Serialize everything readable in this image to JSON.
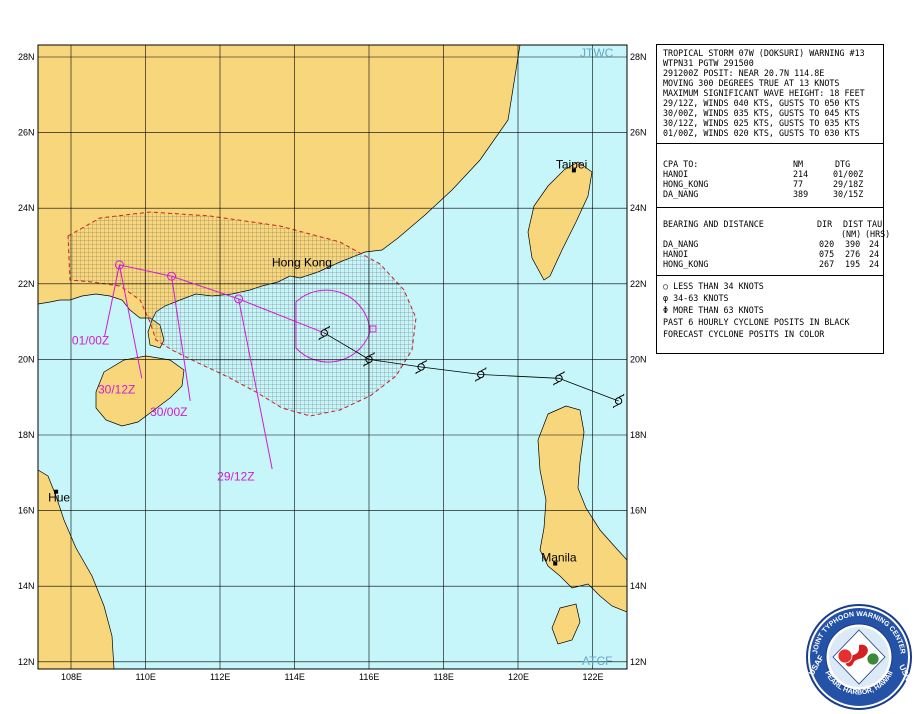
{
  "map": {
    "corner_top": "JTWC",
    "corner_bottom": "ATCF",
    "lat_labels": [
      "28N",
      "26N",
      "24N",
      "22N",
      "20N",
      "18N",
      "16N",
      "14N",
      "12N"
    ],
    "lon_labels": [
      "108E",
      "110E",
      "112E",
      "114E",
      "116E",
      "118E",
      "120E",
      "122E"
    ],
    "cities": [
      {
        "name": "Hong Kong",
        "lat": 22.3,
        "lon": 114.2
      },
      {
        "name": "Taipei",
        "lat": 25.0,
        "lon": 121.5
      },
      {
        "name": "Hue",
        "lat": 16.5,
        "lon": 107.6
      },
      {
        "name": "Manila",
        "lat": 14.6,
        "lon": 121.0
      }
    ],
    "forecast_fixes": [
      {
        "label": "29/12Z",
        "lat": 21.6,
        "lon": 112.5
      },
      {
        "label": "30/00Z",
        "lat": 22.2,
        "lon": 110.7
      },
      {
        "label": "30/12Z",
        "lat": 22.5,
        "lon": 109.3
      },
      {
        "label": "01/00Z",
        "lat": 22.5,
        "lon": 109.3
      }
    ],
    "current_position": {
      "lat": 20.7,
      "lon": 114.8
    },
    "past_track": [
      {
        "lat": 20.7,
        "lon": 114.8
      },
      {
        "lat": 20.0,
        "lon": 116.0
      },
      {
        "lat": 19.8,
        "lon": 117.4
      },
      {
        "lat": 19.6,
        "lon": 119.0
      },
      {
        "lat": 19.5,
        "lon": 121.1
      },
      {
        "lat": 18.9,
        "lon": 122.7
      }
    ],
    "colors": {
      "ocean": "#c6f5fa",
      "land": "#f8d77c",
      "forecast": "#d21cd2",
      "danger": "#cc2222",
      "grid": "#000000"
    }
  },
  "warning": {
    "lines": [
      "TROPICAL STORM 07W (DOKSURI) WARNING #13",
      "WTPN31 PGTW 291500",
      "291200Z POSIT: NEAR 20.7N 114.8E",
      "MOVING 300 DEGREES TRUE AT 13 KNOTS",
      "MAXIMUM SIGNIFICANT WAVE HEIGHT: 18 FEET",
      "29/12Z, WINDS 040 KTS, GUSTS TO 050 KTS",
      "30/00Z, WINDS 035 KTS, GUSTS TO 045 KTS",
      "30/12Z, WINDS 025 KTS, GUSTS TO 035 KTS",
      "01/00Z, WINDS 020 KTS, GUSTS TO 030 KTS"
    ],
    "cpa": {
      "header": {
        "label": "CPA TO:",
        "nm": "NM",
        "dtg": "DTG"
      },
      "rows": [
        {
          "place": "HANOI",
          "nm": "214",
          "dtg": "01/00Z"
        },
        {
          "place": "HONG_KONG",
          "nm": "77",
          "dtg": "29/18Z"
        },
        {
          "place": "DA_NANG",
          "nm": "389",
          "dtg": "30/15Z"
        }
      ]
    },
    "bearing": {
      "header": {
        "label": "BEARING AND DISTANCE",
        "dir": "DIR",
        "dist": "DIST",
        "tau": "TAU"
      },
      "subheader": {
        "dist": "(NM)",
        "tau": "(HRS)"
      },
      "rows": [
        {
          "place": "DA_NANG",
          "dir": "020",
          "dist": "390",
          "tau": "24"
        },
        {
          "place": "HANOI",
          "dir": "075",
          "dist": "276",
          "tau": "24"
        },
        {
          "place": "HONG_KONG",
          "dir": "267",
          "dist": "195",
          "tau": "24"
        }
      ]
    },
    "legend": [
      "LESS THAN 34 KNOTS",
      "34-63 KNOTS",
      "MORE THAN 63 KNOTS",
      "PAST 6 HOURLY CYCLONE POSITS IN BLACK",
      "FORECAST CYCLONE POSITS IN COLOR"
    ]
  },
  "seal": {
    "top_text": "JOINT TYPHOON WARNING CENTER",
    "bottom_text": "PEARL HARBOR, HAWAII",
    "left_text": "USAF",
    "right_text": "USN"
  }
}
